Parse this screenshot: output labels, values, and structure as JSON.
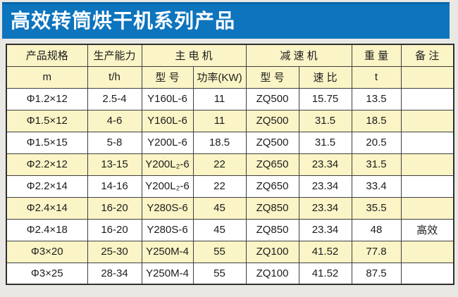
{
  "banner": {
    "title": "高效转筒烘干机系列产品",
    "bg_color": "#0d74be",
    "text_color": "#ffffff"
  },
  "table": {
    "header_row1": [
      "产品规格",
      "生产能力",
      "主  电  机",
      "减   速   机",
      "重 量",
      "备 注"
    ],
    "header_row2": [
      "m",
      "t/h",
      "型 号",
      "功率(KW)",
      "型 号",
      "速 比",
      "t",
      ""
    ],
    "rows": [
      [
        "Φ1.2×12",
        "2.5-4",
        "Y160L-6",
        "11",
        "ZQ500",
        "15.75",
        "13.5",
        ""
      ],
      [
        "Φ1.5×12",
        "4-6",
        "Y160L-6",
        "11",
        "ZQ500",
        "31.5",
        "18.5",
        ""
      ],
      [
        "Φ1.5×15",
        "5-8",
        "Y200L-6",
        "18.5",
        "ZQ500",
        "31.5",
        "20.5",
        ""
      ],
      [
        "Φ2.2×12",
        "13-15",
        "Y200L₂-6",
        "22",
        "ZQ650",
        "23.34",
        "31.5",
        ""
      ],
      [
        "Φ2.2×14",
        "14-16",
        "Y200L₂-6",
        "22",
        "ZQ650",
        "23.34",
        "33.4",
        ""
      ],
      [
        "Φ2.4×14",
        "16-20",
        "Y280S-6",
        "45",
        "ZQ850",
        "23.34",
        "35.5",
        ""
      ],
      [
        "Φ2.4×18",
        "16-20",
        "Y280S-6",
        "45",
        "ZQ850",
        "23.34",
        "48",
        "高效"
      ],
      [
        "Φ3×20",
        "25-30",
        "Y250M-4",
        "55",
        "ZQ100",
        "41.52",
        "77.8",
        ""
      ],
      [
        "Φ3×25",
        "28-34",
        "Y250M-4",
        "55",
        "ZQ100",
        "41.52",
        "87.5",
        ""
      ]
    ],
    "colors": {
      "header_bg": "#fbf4c6",
      "row_alt_bg": "#fbf4c6",
      "row_bg": "#ffffff",
      "border": "#3f3f3f",
      "page_bg": "#e9e8e4"
    }
  }
}
